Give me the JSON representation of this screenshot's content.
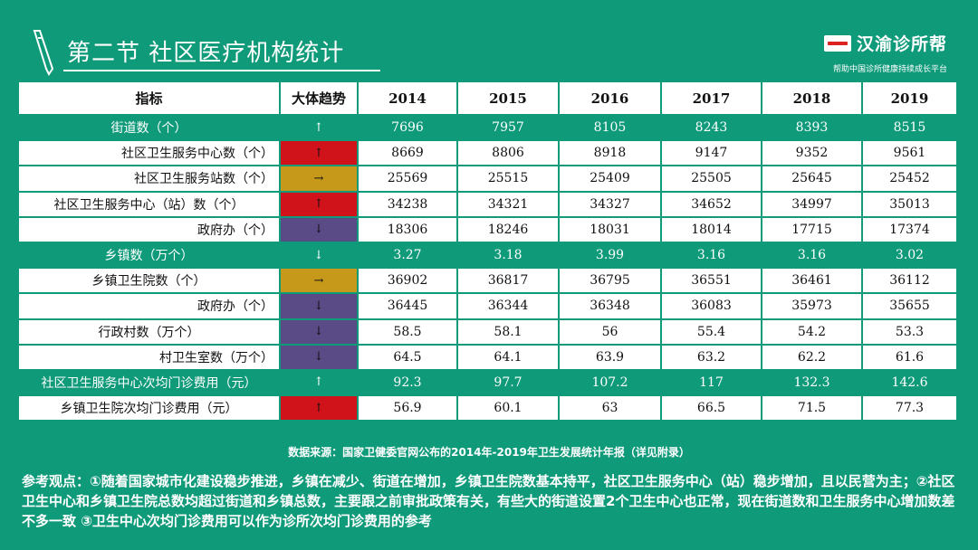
{
  "header": {
    "title": "第二节 社区医疗机构统计",
    "brand_name": "汉渝诊所帮",
    "brand_slogan": "帮助中国诊所健康持续成长平台",
    "pen_icon": "pen-icon"
  },
  "table": {
    "columns": [
      "指标",
      "大体趋势",
      "2014",
      "2015",
      "2016",
      "2017",
      "2018",
      "2019"
    ],
    "rows": [
      {
        "label": "街道数（个）",
        "trend": "↑",
        "trend_color": "green",
        "values": [
          "7696",
          "7957",
          "8105",
          "8243",
          "8393",
          "8515"
        ]
      },
      {
        "label": "社区卫生服务中心数（个）",
        "trend": "↑",
        "trend_color": "red",
        "values": [
          "8669",
          "8806",
          "8918",
          "9147",
          "9352",
          "9561"
        ]
      },
      {
        "label": "社区卫生服务站数（个）",
        "trend": "→",
        "trend_color": "gold",
        "values": [
          "25569",
          "25515",
          "25409",
          "25505",
          "25645",
          "25452"
        ]
      },
      {
        "label": "社区卫生服务中心（站）数（个）",
        "trend": "↑",
        "trend_color": "red",
        "values": [
          "34238",
          "34321",
          "34327",
          "34652",
          "34997",
          "35013"
        ]
      },
      {
        "label": "政府办（个）",
        "trend": "↓",
        "trend_color": "purple",
        "values": [
          "18306",
          "18246",
          "18031",
          "18014",
          "17715",
          "17374"
        ]
      },
      {
        "label": "乡镇数（万个）",
        "trend": "↓",
        "trend_color": "green",
        "values": [
          "3.27",
          "3.18",
          "3.99",
          "3.16",
          "3.16",
          "3.02"
        ]
      },
      {
        "label": "乡镇卫生院数（个）",
        "trend": "→",
        "trend_color": "gold",
        "values": [
          "36902",
          "36817",
          "36795",
          "36551",
          "36461",
          "36112"
        ]
      },
      {
        "label": "政府办（个）",
        "trend": "↓",
        "trend_color": "purple",
        "values": [
          "36445",
          "36344",
          "36348",
          "36083",
          "35973",
          "35655"
        ]
      },
      {
        "label": "行政村数（万个）",
        "trend": "↓",
        "trend_color": "purple",
        "values": [
          "58.5",
          "58.1",
          "56",
          "55.4",
          "54.2",
          "53.3"
        ]
      },
      {
        "label": "村卫生室数（万个）",
        "trend": "↓",
        "trend_color": "purple",
        "values": [
          "64.5",
          "64.1",
          "63.9",
          "63.2",
          "62.2",
          "61.6"
        ]
      },
      {
        "label": "社区卫生服务中心次均门诊费用（元）",
        "trend": "↑",
        "trend_color": "green",
        "values": [
          "92.3",
          "97.7",
          "107.2",
          "117",
          "132.3",
          "142.6"
        ]
      },
      {
        "label": "乡镇卫生院次均门诊费用（元）",
        "trend": "↑",
        "trend_color": "red",
        "values": [
          "56.9",
          "60.1",
          "63",
          "66.5",
          "71.5",
          "77.3"
        ]
      }
    ]
  },
  "source": "数据来源：国家卫健委官网公布的2014年-2019年卫生发展统计年报（详见附录）",
  "notes": "参考观点：①随着国家城市化建设稳步推进，乡镇在减少、街道在增加，乡镇卫生院数基本持平，社区卫生服务中心（站）稳步增加，且以民营为主；②社区卫生中心和乡镇卫生院总数均超过街道和乡镇总数，主要跟之前审批政策有关，有些大的街道设置2个卫生中心也正常，现在街道数和卫生服务中心增加数差不多一致 ③卫生中心次均门诊费用可以作为诊所次均门诊费用的参考",
  "colors": {
    "background": "#0f9a7a",
    "red": "#d0121b",
    "gold": "#c7991a",
    "purple": "#5a4a86"
  }
}
